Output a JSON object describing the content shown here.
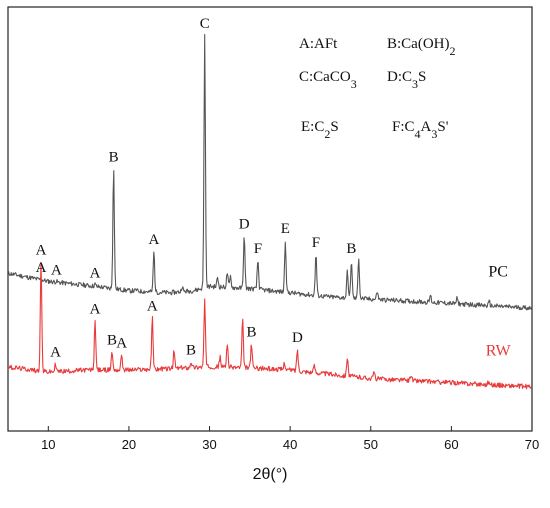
{
  "chart_data": {
    "type": "line",
    "xlabel": "2θ(°)",
    "xlim": [
      5,
      70
    ],
    "xticks": [
      10,
      20,
      30,
      40,
      50,
      60,
      70
    ],
    "ylabel": "",
    "y_axis_ticks_shown": false,
    "y_units": "arbitrary intensity (stacked, 0-100 scale)",
    "ylim": [
      0,
      100
    ],
    "grid": false,
    "legend_placement": "top-right",
    "legend": [
      {
        "key": "A",
        "text": "A:AFt"
      },
      {
        "key": "B",
        "text": "B:Ca(OH)2"
      },
      {
        "key": "C",
        "text": "C:CaCO3"
      },
      {
        "key": "D",
        "text": "D:C3S"
      },
      {
        "key": "E",
        "text": "E:C2S"
      },
      {
        "key": "F",
        "text": "F:C4A3S'"
      }
    ],
    "series": [
      {
        "name": "PC",
        "color": "#555555",
        "baseline": [
          [
            5,
            37.2
          ],
          [
            10,
            35.3
          ],
          [
            15,
            34.3
          ],
          [
            20,
            33.1
          ],
          [
            25,
            32.6
          ],
          [
            28,
            33.1
          ],
          [
            30,
            34.1
          ],
          [
            35,
            33.6
          ],
          [
            40,
            32.6
          ],
          [
            45,
            31.6
          ],
          [
            50,
            31.1
          ],
          [
            55,
            30.6
          ],
          [
            60,
            30.1
          ],
          [
            65,
            29.5
          ],
          [
            70,
            29.0
          ]
        ],
        "peaks": [
          {
            "x": 9.1,
            "y": 35.8
          },
          {
            "x": 11.0,
            "y": 35.3
          },
          {
            "x": 15.8,
            "y": 34.6
          },
          {
            "x": 18.1,
            "y": 61.9
          },
          {
            "x": 20.9,
            "y": 33.3
          },
          {
            "x": 23.1,
            "y": 42.4
          },
          {
            "x": 26.6,
            "y": 34.1
          },
          {
            "x": 29.4,
            "y": 93.4
          },
          {
            "x": 31.0,
            "y": 36.2
          },
          {
            "x": 32.2,
            "y": 37.3
          },
          {
            "x": 32.6,
            "y": 36.5
          },
          {
            "x": 34.3,
            "y": 46.1
          },
          {
            "x": 36.0,
            "y": 40.3
          },
          {
            "x": 39.4,
            "y": 45.0
          },
          {
            "x": 43.2,
            "y": 41.8
          },
          {
            "x": 47.1,
            "y": 37.7
          },
          {
            "x": 47.6,
            "y": 40.3
          },
          {
            "x": 48.5,
            "y": 41.0
          },
          {
            "x": 50.8,
            "y": 33.0
          },
          {
            "x": 57.4,
            "y": 32.0
          },
          {
            "x": 60.7,
            "y": 31.2
          },
          {
            "x": 64.7,
            "y": 30.4
          }
        ],
        "peak_labels": [
          {
            "x": 9.1,
            "label": "A"
          },
          {
            "x": 11.0,
            "label": "A"
          },
          {
            "x": 15.8,
            "label": "A"
          },
          {
            "x": 18.1,
            "label": "B"
          },
          {
            "x": 23.1,
            "label": "A"
          },
          {
            "x": 29.4,
            "label": "C"
          },
          {
            "x": 34.3,
            "label": "D"
          },
          {
            "x": 36.0,
            "label": "F"
          },
          {
            "x": 39.4,
            "label": "E"
          },
          {
            "x": 43.2,
            "label": "F"
          },
          {
            "x": 47.6,
            "label": "B"
          }
        ],
        "end_label": "PC"
      },
      {
        "name": "RW",
        "color": "#e83a3a",
        "baseline": [
          [
            5,
            15.1
          ],
          [
            10,
            13.9
          ],
          [
            15,
            14.4
          ],
          [
            20,
            14.4
          ],
          [
            25,
            14.7
          ],
          [
            30,
            15.2
          ],
          [
            35,
            14.9
          ],
          [
            40,
            14.4
          ],
          [
            45,
            13.4
          ],
          [
            50,
            12.4
          ],
          [
            55,
            11.9
          ],
          [
            60,
            11.4
          ],
          [
            65,
            10.9
          ],
          [
            70,
            10.4
          ]
        ],
        "peaks": [
          {
            "x": 9.1,
            "y": 40.0
          },
          {
            "x": 10.9,
            "y": 15.9
          },
          {
            "x": 15.8,
            "y": 26.1
          },
          {
            "x": 17.9,
            "y": 18.8
          },
          {
            "x": 19.1,
            "y": 18.1
          },
          {
            "x": 22.9,
            "y": 26.8
          },
          {
            "x": 25.6,
            "y": 18.8
          },
          {
            "x": 27.7,
            "y": 16.4
          },
          {
            "x": 29.4,
            "y": 31.1
          },
          {
            "x": 31.3,
            "y": 17.4
          },
          {
            "x": 32.2,
            "y": 20.8
          },
          {
            "x": 34.1,
            "y": 26.2
          },
          {
            "x": 35.2,
            "y": 20.6
          },
          {
            "x": 39.3,
            "y": 16.2
          },
          {
            "x": 40.9,
            "y": 19.3
          },
          {
            "x": 43.0,
            "y": 15.4
          },
          {
            "x": 47.1,
            "y": 17.6
          },
          {
            "x": 50.4,
            "y": 13.9
          },
          {
            "x": 55.0,
            "y": 13.4
          },
          {
            "x": 64.6,
            "y": 11.6
          }
        ],
        "peak_labels": [
          {
            "x": 9.1,
            "label": "A"
          },
          {
            "x": 10.9,
            "label": "A"
          },
          {
            "x": 15.8,
            "label": "A"
          },
          {
            "x": 17.9,
            "label": "B"
          },
          {
            "x": 19.1,
            "label": "A"
          },
          {
            "x": 22.9,
            "label": "A"
          },
          {
            "x": 27.7,
            "label": "B"
          },
          {
            "x": 35.2,
            "label": "B"
          },
          {
            "x": 40.9,
            "label": "D"
          }
        ],
        "end_label": "RW"
      }
    ]
  }
}
